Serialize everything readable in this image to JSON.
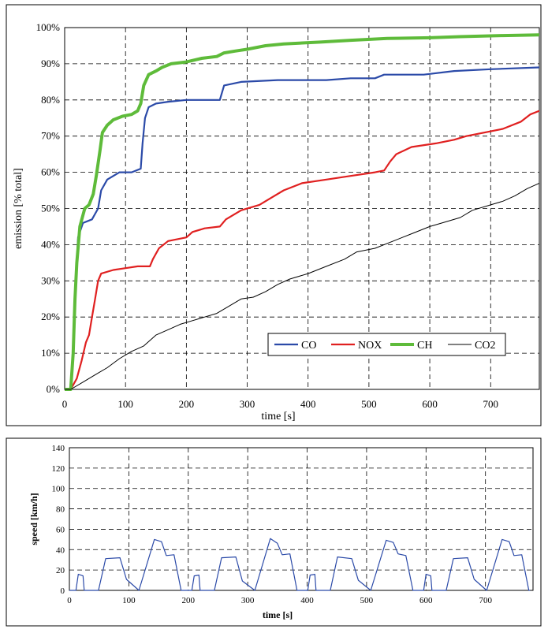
{
  "chart_data": [
    {
      "type": "line",
      "xlabel": "time [s]",
      "ylabel": "emission [% total]",
      "xlim": [
        0,
        780
      ],
      "ylim": [
        0,
        100
      ],
      "xticks": [
        0,
        100,
        200,
        300,
        400,
        500,
        600,
        700
      ],
      "yticks": [
        "0%",
        "10%",
        "20%",
        "30%",
        "40%",
        "50%",
        "60%",
        "70%",
        "80%",
        "90%",
        "100%"
      ],
      "grid": true,
      "legend": "bottom-right",
      "series": [
        {
          "name": "CO",
          "color": "#2b4aa8",
          "points": [
            [
              0,
              0
            ],
            [
              10,
              0
            ],
            [
              14,
              12
            ],
            [
              18,
              30
            ],
            [
              22,
              42
            ],
            [
              30,
              46
            ],
            [
              45,
              47
            ],
            [
              55,
              50
            ],
            [
              60,
              55
            ],
            [
              70,
              58
            ],
            [
              90,
              60
            ],
            [
              110,
              60
            ],
            [
              125,
              61
            ],
            [
              128,
              68
            ],
            [
              132,
              75
            ],
            [
              138,
              78
            ],
            [
              150,
              79
            ],
            [
              170,
              79.5
            ],
            [
              200,
              80
            ],
            [
              230,
              80
            ],
            [
              255,
              80
            ],
            [
              262,
              84
            ],
            [
              290,
              85
            ],
            [
              350,
              85.5
            ],
            [
              430,
              85.5
            ],
            [
              470,
              86
            ],
            [
              510,
              86
            ],
            [
              525,
              87
            ],
            [
              590,
              87
            ],
            [
              640,
              88
            ],
            [
              700,
              88.5
            ],
            [
              780,
              89
            ]
          ]
        },
        {
          "name": "NOX",
          "color": "#e02020",
          "points": [
            [
              0,
              0
            ],
            [
              10,
              0
            ],
            [
              20,
              3
            ],
            [
              28,
              8
            ],
            [
              35,
              13
            ],
            [
              40,
              15
            ],
            [
              45,
              20
            ],
            [
              50,
              25
            ],
            [
              55,
              30
            ],
            [
              60,
              32
            ],
            [
              80,
              33
            ],
            [
              100,
              33.5
            ],
            [
              120,
              34
            ],
            [
              140,
              34
            ],
            [
              145,
              36
            ],
            [
              155,
              39
            ],
            [
              170,
              41
            ],
            [
              200,
              42
            ],
            [
              210,
              43.5
            ],
            [
              230,
              44.5
            ],
            [
              255,
              45
            ],
            [
              265,
              47
            ],
            [
              290,
              49.5
            ],
            [
              320,
              51
            ],
            [
              340,
              53
            ],
            [
              360,
              55
            ],
            [
              390,
              57
            ],
            [
              430,
              58
            ],
            [
              470,
              59
            ],
            [
              510,
              60
            ],
            [
              525,
              60.5
            ],
            [
              535,
              63
            ],
            [
              545,
              65
            ],
            [
              570,
              67
            ],
            [
              610,
              68
            ],
            [
              640,
              69
            ],
            [
              660,
              70
            ],
            [
              720,
              72
            ],
            [
              750,
              74
            ],
            [
              765,
              76
            ],
            [
              780,
              77
            ]
          ]
        },
        {
          "name": "CH",
          "color": "#5ebb3a",
          "points": [
            [
              0,
              0
            ],
            [
              10,
              0
            ],
            [
              14,
              10
            ],
            [
              17,
              25
            ],
            [
              20,
              35
            ],
            [
              25,
              45
            ],
            [
              33,
              50
            ],
            [
              40,
              51
            ],
            [
              47,
              54
            ],
            [
              52,
              59
            ],
            [
              58,
              66
            ],
            [
              62,
              71
            ],
            [
              70,
              73
            ],
            [
              80,
              74.5
            ],
            [
              95,
              75.5
            ],
            [
              110,
              76
            ],
            [
              120,
              77
            ],
            [
              125,
              79
            ],
            [
              130,
              84
            ],
            [
              138,
              87
            ],
            [
              150,
              88
            ],
            [
              160,
              89
            ],
            [
              175,
              90
            ],
            [
              200,
              90.5
            ],
            [
              225,
              91.5
            ],
            [
              250,
              92
            ],
            [
              262,
              93
            ],
            [
              280,
              93.5
            ],
            [
              300,
              94
            ],
            [
              330,
              95
            ],
            [
              360,
              95.5
            ],
            [
              420,
              96
            ],
            [
              470,
              96.5
            ],
            [
              530,
              97
            ],
            [
              600,
              97.2
            ],
            [
              650,
              97.5
            ],
            [
              720,
              97.8
            ],
            [
              780,
              98
            ]
          ]
        },
        {
          "name": "CO2",
          "color": "#000000",
          "points": [
            [
              0,
              0
            ],
            [
              10,
              0
            ],
            [
              30,
              2
            ],
            [
              50,
              4
            ],
            [
              70,
              6
            ],
            [
              90,
              8.5
            ],
            [
              110,
              10.5
            ],
            [
              130,
              12
            ],
            [
              150,
              15
            ],
            [
              170,
              16.5
            ],
            [
              190,
              18
            ],
            [
              210,
              19
            ],
            [
              230,
              20
            ],
            [
              250,
              21
            ],
            [
              270,
              23
            ],
            [
              290,
              25
            ],
            [
              310,
              25.5
            ],
            [
              330,
              27
            ],
            [
              350,
              29
            ],
            [
              370,
              30.5
            ],
            [
              400,
              32
            ],
            [
              430,
              34
            ],
            [
              460,
              36
            ],
            [
              480,
              38
            ],
            [
              510,
              39
            ],
            [
              540,
              41
            ],
            [
              570,
              43
            ],
            [
              600,
              45
            ],
            [
              620,
              46
            ],
            [
              650,
              47.5
            ],
            [
              670,
              49.5
            ],
            [
              700,
              51
            ],
            [
              720,
              52
            ],
            [
              740,
              53.5
            ],
            [
              760,
              55.5
            ],
            [
              780,
              57
            ]
          ]
        }
      ]
    },
    {
      "type": "line",
      "xlabel": "time [s]",
      "ylabel": "speed [km/h]",
      "xlim": [
        0,
        780
      ],
      "ylim": [
        0,
        140
      ],
      "xticks": [
        0,
        100,
        200,
        300,
        400,
        500,
        600,
        700
      ],
      "yticks": [
        0,
        20,
        40,
        60,
        80,
        100,
        120,
        140
      ],
      "grid": true,
      "series": [
        {
          "name": "speed",
          "color": "#2b4aa8",
          "cycle_period_s": 195,
          "cycle_profile": [
            [
              0,
              0
            ],
            [
              11,
              0
            ],
            [
              15,
              15
            ],
            [
              23,
              15
            ],
            [
              25,
              0
            ],
            [
              49,
              0
            ],
            [
              61,
              32
            ],
            [
              85,
              32
            ],
            [
              96,
              10
            ],
            [
              117,
              0
            ],
            [
              143,
              50
            ],
            [
              155,
              47
            ],
            [
              163,
              35
            ],
            [
              176,
              35
            ],
            [
              188,
              0
            ],
            [
              195,
              0
            ]
          ]
        }
      ]
    }
  ]
}
